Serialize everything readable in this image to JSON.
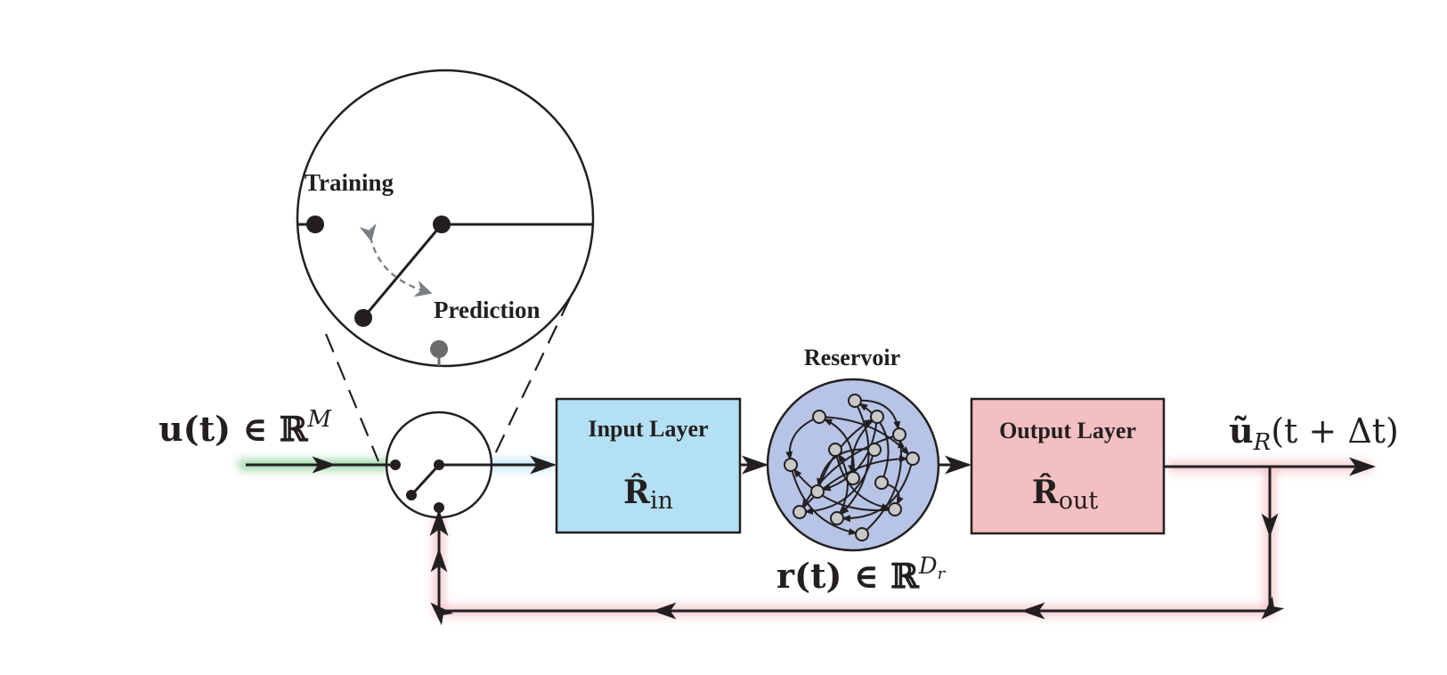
{
  "labels": {
    "training": "Training",
    "prediction": "Prediction",
    "reservoir": "Reservoir",
    "input_layer": "Input Layer",
    "output_layer": "Output Layer"
  },
  "math": {
    "input_signal": {
      "main": "u(t) ∈ ℝ",
      "sup": "M"
    },
    "input_matrix": {
      "main": "R̂",
      "sub": "in"
    },
    "output_matrix": {
      "main": "R̂",
      "sub": "out"
    },
    "reservoir_state": {
      "main": "r(t) ∈ ℝ",
      "sup": "D",
      "sup_sub": "r"
    },
    "output_signal": {
      "main": "ũ",
      "sub": "R",
      "tail": "(t + Δt)"
    }
  },
  "colors": {
    "input_layer_fill": "#b3e0f2",
    "output_layer_fill": "#f4bfc0",
    "reservoir_fill": "#b7c4e6",
    "node_fill": "#c8c8c8",
    "training_glow": "#7cc98a",
    "prediction_glow": "#f3b8b8",
    "input_glow": "#aee0f4",
    "line": "#231f20",
    "switch_arrow": "#7a7f87"
  },
  "icons": {
    "switch": "toggle-switch-icon",
    "network": "recurrent-network-icon"
  }
}
